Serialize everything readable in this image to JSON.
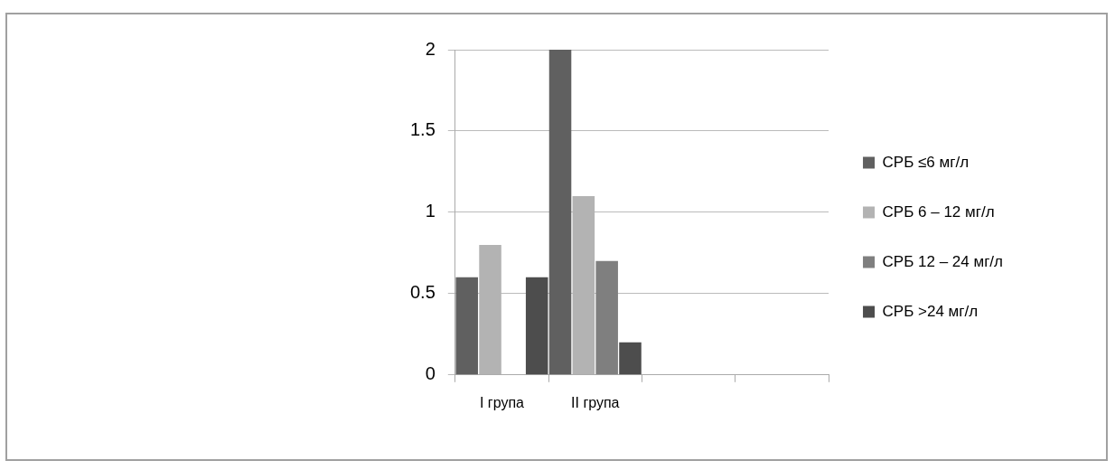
{
  "chart_data": {
    "type": "bar",
    "categories": [
      "I група",
      "II група",
      null,
      null
    ],
    "series": [
      {
        "name": "СРБ ≤6 мг/л",
        "color": "#606060",
        "values": [
          0.6,
          2,
          null,
          null
        ]
      },
      {
        "name": "СРБ 6 – 12 мг/л",
        "color": "#b3b3b3",
        "values": [
          0.8,
          1.1,
          null,
          null
        ]
      },
      {
        "name": "СРБ 12 – 24 мг/л",
        "color": "#7f7f7f",
        "values": [
          0,
          0.7,
          null,
          null
        ]
      },
      {
        "name": "СРБ >24 мг/л",
        "color": "#4d4d4d",
        "values": [
          0.6,
          0.2,
          null,
          null
        ]
      }
    ],
    "ylim": [
      0,
      2
    ],
    "yticks": [
      0,
      0.5,
      1,
      1.5,
      2
    ],
    "grid": "y",
    "legend": "right"
  }
}
